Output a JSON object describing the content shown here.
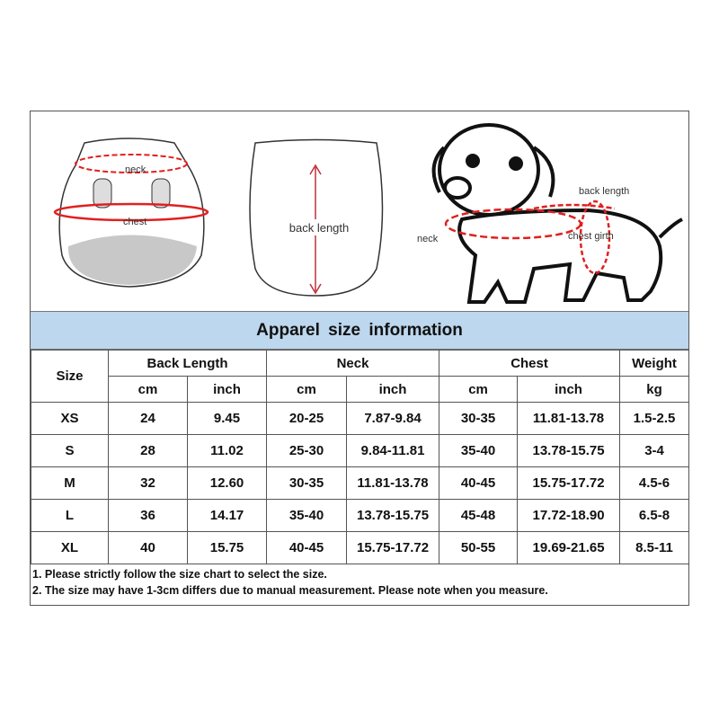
{
  "illustrations": {
    "front_labels": {
      "neck": "neck",
      "chest": "chest"
    },
    "back_label": "back length",
    "dog_labels": {
      "back_length": "back length",
      "neck": "neck",
      "chest_girth": "chest girth"
    },
    "accent_color": "#e02020"
  },
  "title": "Apparel size information",
  "table": {
    "size_header": "Size",
    "groups": [
      "Back Length",
      "Neck",
      "Chest",
      "Weight"
    ],
    "units": [
      "cm",
      "inch",
      "cm",
      "inch",
      "cm",
      "inch",
      "kg"
    ],
    "rows": [
      {
        "size": "XS",
        "values": [
          "24",
          "9.45",
          "20-25",
          "7.87-9.84",
          "30-35",
          "11.81-13.78",
          "1.5-2.5"
        ]
      },
      {
        "size": "S",
        "values": [
          "28",
          "11.02",
          "25-30",
          "9.84-11.81",
          "35-40",
          "13.78-15.75",
          "3-4"
        ]
      },
      {
        "size": "M",
        "values": [
          "32",
          "12.60",
          "30-35",
          "11.81-13.78",
          "40-45",
          "15.75-17.72",
          "4.5-6"
        ]
      },
      {
        "size": "L",
        "values": [
          "36",
          "14.17",
          "35-40",
          "13.78-15.75",
          "45-48",
          "17.72-18.90",
          "6.5-8"
        ]
      },
      {
        "size": "XL",
        "values": [
          "40",
          "15.75",
          "40-45",
          "15.75-17.72",
          "50-55",
          "19.69-21.65",
          "8.5-11"
        ]
      }
    ]
  },
  "notes": [
    "1. Please strictly follow the size chart  to select the size.",
    "2. The size may have 1-3cm differs due to manual measurement. Please note when you measure."
  ]
}
